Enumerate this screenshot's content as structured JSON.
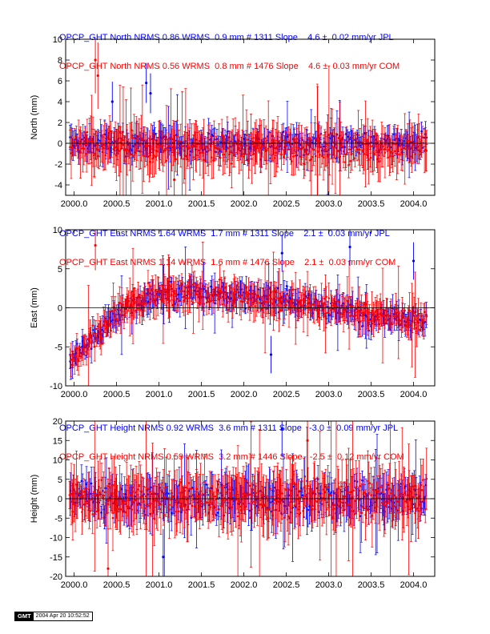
{
  "colors": {
    "jpl": "#0000ff",
    "com": "#ff0000",
    "axis": "#000000"
  },
  "panels": [
    {
      "header_jpl": "OPCP_GHT North NRMS 0.86 WRMS  0.9 mm # 1311 Slope    4.6 ±  0.02 mm/yr JPL",
      "header_com": "OPCP_GHT North NRMS 0.56 WRMS  0.8 mm # 1476 Slope    4.6 ±  0.03 mm/yr COM",
      "ylabel": "North (mm)"
    },
    {
      "header_jpl": "OPCP_GHT East NRMS 1.64 WRMS  1.7 mm # 1311 Slope    2.1 ±  0.03 mm/yr JPL",
      "header_com": "OPCP_GHT East NRMS 1.14 WRMS  1.6 mm # 1476 Slope    2.1 ±  0.03 mm/yr COM",
      "ylabel": "East (mm)"
    },
    {
      "header_jpl": "OPCP_GHT Height NRMS 0.92 WRMS  3.6 mm # 1311 Slope   -3.0 ±  0.09 mm/yr JPL",
      "header_com": "OPCP_GHT Height NRMS 0.59 WRMS  3.2 mm # 1446 Slope   -2.5 ±  0.12 mm/yr COM",
      "ylabel": "Height (mm)"
    }
  ],
  "gmt": {
    "logo": "GMT",
    "timestamp": "2004 Apr 20 10:52:52"
  },
  "chart_data": [
    {
      "type": "scatter",
      "title": "OPCP_GHT North",
      "xlabel": "",
      "ylabel": "North (mm)",
      "xlim": [
        1999.9,
        2004.25
      ],
      "ylim": [
        -5,
        10
      ],
      "xticks": [
        2000.0,
        2000.5,
        2001.0,
        2001.5,
        2002.0,
        2002.5,
        2003.0,
        2003.5,
        2004.0
      ],
      "yticks": [
        -4,
        -2,
        0,
        2,
        4,
        6,
        8,
        10
      ],
      "reference_line": 0,
      "series": [
        {
          "name": "JPL",
          "color": "#0000ff",
          "marker": "dot",
          "error_bars": true,
          "x_range": [
            1999.95,
            2004.15
          ],
          "y_center": 0.0,
          "scatter": 1.0,
          "typical_error": 1.2
        },
        {
          "name": "COM",
          "color": "#ff0000",
          "marker": "dot",
          "error_bars": true,
          "x_range": [
            1999.95,
            2004.15
          ],
          "y_center": -0.5,
          "scatter": 1.2,
          "typical_error": 2.0
        }
      ],
      "outliers": [
        {
          "x": 2000.25,
          "y": 8.0,
          "series": "COM"
        },
        {
          "x": 2000.28,
          "y": 6.5,
          "series": "COM"
        },
        {
          "x": 2000.45,
          "y": 4.0,
          "series": "JPL"
        },
        {
          "x": 2000.85,
          "y": 5.8,
          "series": "JPL"
        },
        {
          "x": 2000.9,
          "y": 4.8,
          "series": "JPL"
        },
        {
          "x": 2001.18,
          "y": -3.5,
          "series": "COM"
        }
      ]
    },
    {
      "type": "scatter",
      "title": "OPCP_GHT East",
      "xlabel": "",
      "ylabel": "East (mm)",
      "xlim": [
        1999.9,
        2004.25
      ],
      "ylim": [
        -10,
        10
      ],
      "xticks": [
        2000.0,
        2000.5,
        2001.0,
        2001.5,
        2002.0,
        2002.5,
        2003.0,
        2003.5,
        2004.0
      ],
      "yticks": [
        -10,
        -5,
        0,
        5,
        10
      ],
      "reference_line": 0,
      "series": [
        {
          "name": "JPL",
          "color": "#0000ff",
          "marker": "dot",
          "error_bars": true,
          "x_range": [
            1999.95,
            2004.15
          ],
          "scatter": 1.2,
          "typical_error": 1.5,
          "trend": [
            [
              1999.95,
              -7.0
            ],
            [
              2000.3,
              -3.0
            ],
            [
              2000.6,
              0.0
            ],
            [
              2001.0,
              1.5
            ],
            [
              2001.5,
              2.0
            ],
            [
              2002.0,
              1.5
            ],
            [
              2002.5,
              1.0
            ],
            [
              2003.0,
              0.0
            ],
            [
              2003.5,
              -1.0
            ],
            [
              2004.15,
              -1.5
            ]
          ]
        },
        {
          "name": "COM",
          "color": "#ff0000",
          "marker": "dot",
          "error_bars": true,
          "x_range": [
            1999.95,
            2004.15
          ],
          "scatter": 1.3,
          "typical_error": 2.0,
          "trend": [
            [
              1999.95,
              -7.0
            ],
            [
              2000.3,
              -3.0
            ],
            [
              2000.6,
              0.0
            ],
            [
              2001.0,
              1.5
            ],
            [
              2001.5,
              1.8
            ],
            [
              2002.0,
              1.2
            ],
            [
              2002.5,
              0.8
            ],
            [
              2003.0,
              0.0
            ],
            [
              2003.5,
              -1.0
            ],
            [
              2004.15,
              -1.5
            ]
          ]
        }
      ],
      "outliers": [
        {
          "x": 2000.25,
          "y": 8.0,
          "series": "COM"
        },
        {
          "x": 2002.45,
          "y": 7.0,
          "series": "JPL"
        },
        {
          "x": 2003.25,
          "y": 7.8,
          "series": "JPL"
        },
        {
          "x": 2002.32,
          "y": -6.0,
          "series": "JPL"
        },
        {
          "x": 2004.0,
          "y": 6.0,
          "series": "JPL"
        }
      ]
    },
    {
      "type": "scatter",
      "title": "OPCP_GHT Height",
      "xlabel": "",
      "ylabel": "Height (mm)",
      "xlim": [
        1999.9,
        2004.25
      ],
      "ylim": [
        -20,
        20
      ],
      "xticks": [
        2000.0,
        2000.5,
        2001.0,
        2001.5,
        2002.0,
        2002.5,
        2003.0,
        2003.5,
        2004.0
      ],
      "yticks": [
        -20,
        -15,
        -10,
        -5,
        0,
        5,
        10,
        15,
        20
      ],
      "reference_line": 0,
      "series": [
        {
          "name": "JPL",
          "color": "#0000ff",
          "marker": "dot",
          "error_bars": true,
          "x_range": [
            1999.95,
            2004.15
          ],
          "y_center": 0.0,
          "scatter": 4.0,
          "typical_error": 4.5
        },
        {
          "name": "COM",
          "color": "#ff0000",
          "marker": "dot",
          "error_bars": true,
          "x_range": [
            1999.95,
            2004.15
          ],
          "y_center": 0.0,
          "scatter": 4.0,
          "typical_error": 7.0
        }
      ],
      "outliers": [
        {
          "x": 2002.45,
          "y": 18.0,
          "series": "JPL"
        },
        {
          "x": 2002.75,
          "y": 15.0,
          "series": "COM"
        },
        {
          "x": 2000.4,
          "y": -18.0,
          "series": "COM"
        },
        {
          "x": 2001.05,
          "y": -15.0,
          "series": "JPL"
        }
      ]
    }
  ]
}
